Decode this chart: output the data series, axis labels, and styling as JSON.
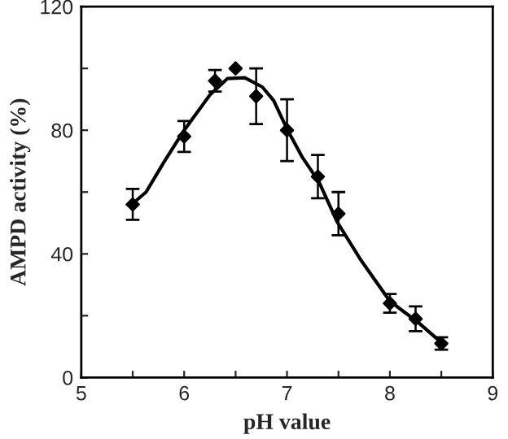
{
  "chart_data": {
    "type": "scatter",
    "xlabel": "pH value",
    "ylabel": "AMPD activity (%)",
    "xlim": [
      5,
      9
    ],
    "ylim": [
      0,
      120
    ],
    "xticks": [
      5,
      {
        "value": 5.5,
        "label": null
      },
      6,
      {
        "value": 6.5,
        "label": null
      },
      7,
      {
        "value": 7.5,
        "label": null
      },
      8,
      {
        "value": 8.5,
        "label": null
      },
      9
    ],
    "yticks": [
      0,
      {
        "value": 20,
        "label": null
      },
      40,
      {
        "value": 60,
        "label": null
      },
      80,
      {
        "value": 100,
        "label": null
      },
      120
    ],
    "grid": false,
    "legend": false,
    "series": [
      {
        "color": "#000000",
        "marker": "diamond",
        "x": [
          5.5,
          6.0,
          6.3,
          6.5,
          6.7,
          7.0,
          7.3,
          7.5,
          8.0,
          8.25,
          8.5
        ],
        "values": [
          56,
          78,
          96,
          100,
          91,
          80,
          65,
          53,
          24,
          19,
          11
        ],
        "errors": [
          5,
          5,
          3.5,
          null,
          9,
          10,
          7,
          7,
          3,
          4,
          2
        ]
      },
      {
        "type": "line",
        "color": "#000000",
        "marker": "none",
        "line_style": "solid",
        "x": [
          5.49,
          5.63,
          5.8,
          6.0,
          6.25,
          6.42,
          6.59,
          6.76,
          6.87,
          7.0,
          7.15,
          7.31,
          7.49,
          7.72,
          8.0,
          8.28,
          8.48
        ],
        "values": [
          56,
          60,
          69.5,
          80,
          91.4,
          96.7,
          97,
          94,
          89.6,
          80.4,
          71.2,
          63.3,
          50.2,
          37.9,
          24.7,
          17.7,
          11.9
        ]
      }
    ]
  }
}
